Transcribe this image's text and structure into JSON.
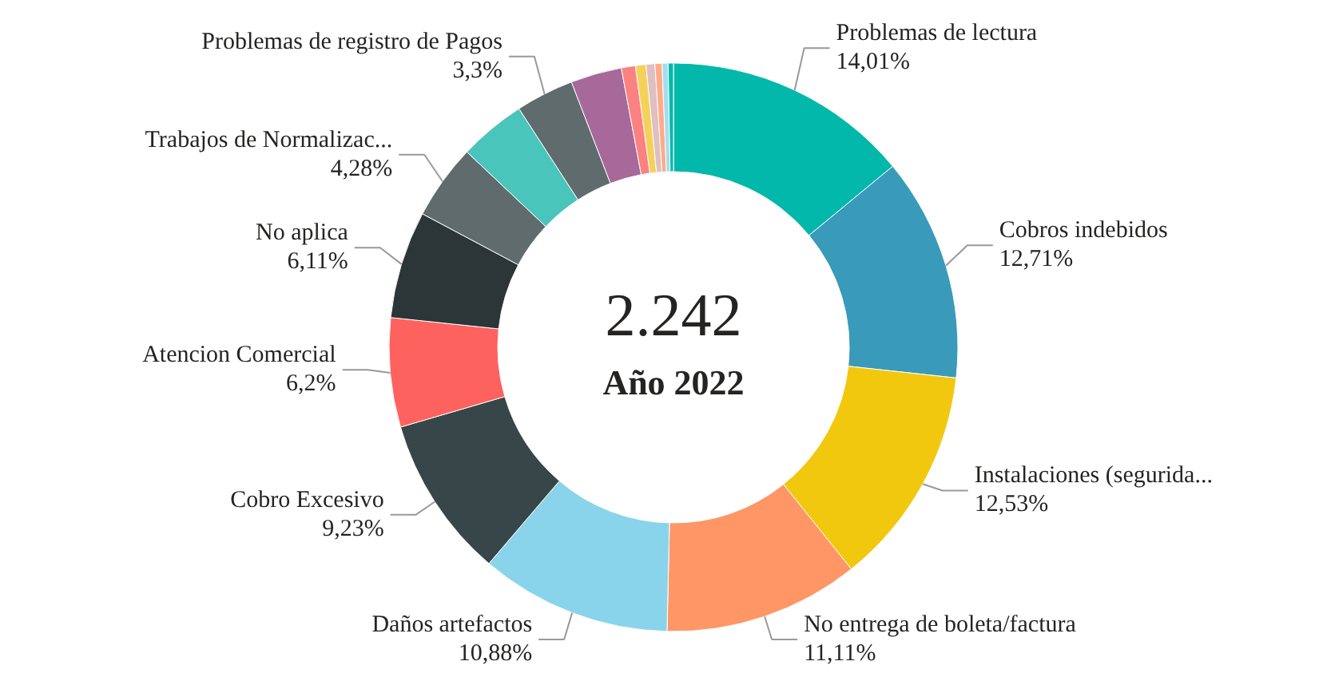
{
  "chart_data": {
    "type": "donut",
    "annotations": [
      "2.242",
      "Año 2022"
    ],
    "categories": [
      "Problemas de lectura",
      "Cobros indebidos",
      "Instalaciones (segurida...",
      "No entrega de boleta/factura",
      "Daños artefactos",
      "Cobro Excesivo",
      "Atencion Comercial",
      "No aplica",
      "Trabajos de Normalizac...",
      null,
      "Problemas de registro de Pagos",
      null,
      null,
      null,
      null,
      null,
      null,
      null
    ],
    "values": [
      14.01,
      12.71,
      12.53,
      11.11,
      10.88,
      9.23,
      6.2,
      6.11,
      4.28,
      3.8,
      3.3,
      2.9,
      0.8,
      0.6,
      0.5,
      0.4,
      0.34,
      0.3
    ],
    "value_labels": [
      "14,01%",
      "12,71%",
      "12,53%",
      "11,11%",
      "10,88%",
      "9,23%",
      "6,2%",
      "6,11%",
      "4,28%",
      null,
      "3,3%",
      null,
      null,
      null,
      null,
      null,
      null,
      null
    ],
    "colors": [
      "#01b8aa",
      "#3a9ab9",
      "#f2c80f",
      "#fe9666",
      "#8ad4eb",
      "#374649",
      "#fd625e",
      "#2c3638",
      "#5f6b6d",
      "#4ac5bb",
      "#5f6b6d",
      "#a66999",
      "#fb8281",
      "#f4d25a",
      "#dfbfbf",
      "#fdab89",
      "#a4ddee",
      "#01b8aa"
    ]
  }
}
